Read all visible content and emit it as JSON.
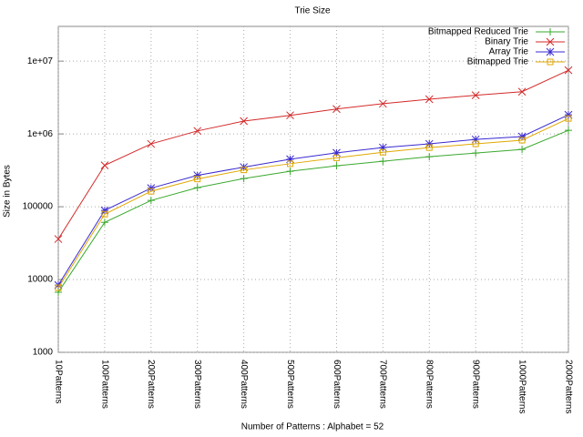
{
  "chart_data": {
    "type": "line",
    "title": "Trie Size",
    "x_label": "Number of Patterns : Alphabet = 52",
    "y_label": "Size in Bytes",
    "categories": [
      "10Patterns",
      "100Patterns",
      "200Patterns",
      "300Patterns",
      "400Patterns",
      "500Patterns",
      "600Patterns",
      "700Patterns",
      "800Patterns",
      "900Patterns",
      "1000Patterns",
      "2000Patterns"
    ],
    "log_y": true,
    "grid": true,
    "legend": "top-right",
    "ylim": [
      1000,
      30000000
    ],
    "yticks": [
      1000,
      10000,
      100000,
      {
        "value": 1000000,
        "label": "1e+06"
      },
      {
        "value": 10000000,
        "label": "1e+07"
      }
    ],
    "series": [
      {
        "name": "Bitmapped Reduced Trie",
        "color": "#3aa82e",
        "marker": "plus",
        "values": [
          6700,
          61000,
          122000,
          183000,
          244000,
          307000,
          365000,
          422000,
          487000,
          546000,
          613000,
          1120000
        ]
      },
      {
        "name": "Binary Trie",
        "color": "#d42a2a",
        "marker": "cross",
        "values": [
          36000,
          370000,
          730000,
          1100000,
          1500000,
          1800000,
          2200000,
          2600000,
          3000000,
          3400000,
          3800000,
          7500000
        ]
      },
      {
        "name": "Array Trie",
        "color": "#3a2ad0",
        "marker": "star",
        "values": [
          8400,
          89000,
          180000,
          270000,
          350000,
          450000,
          550000,
          650000,
          730000,
          840000,
          920000,
          1830000
        ]
      },
      {
        "name": "Bitmapped Trie",
        "color": "#e0a800",
        "marker": "square",
        "values": [
          7700,
          79000,
          163000,
          240000,
          320000,
          390000,
          470000,
          560000,
          650000,
          730000,
          820000,
          1630000
        ]
      }
    ]
  }
}
